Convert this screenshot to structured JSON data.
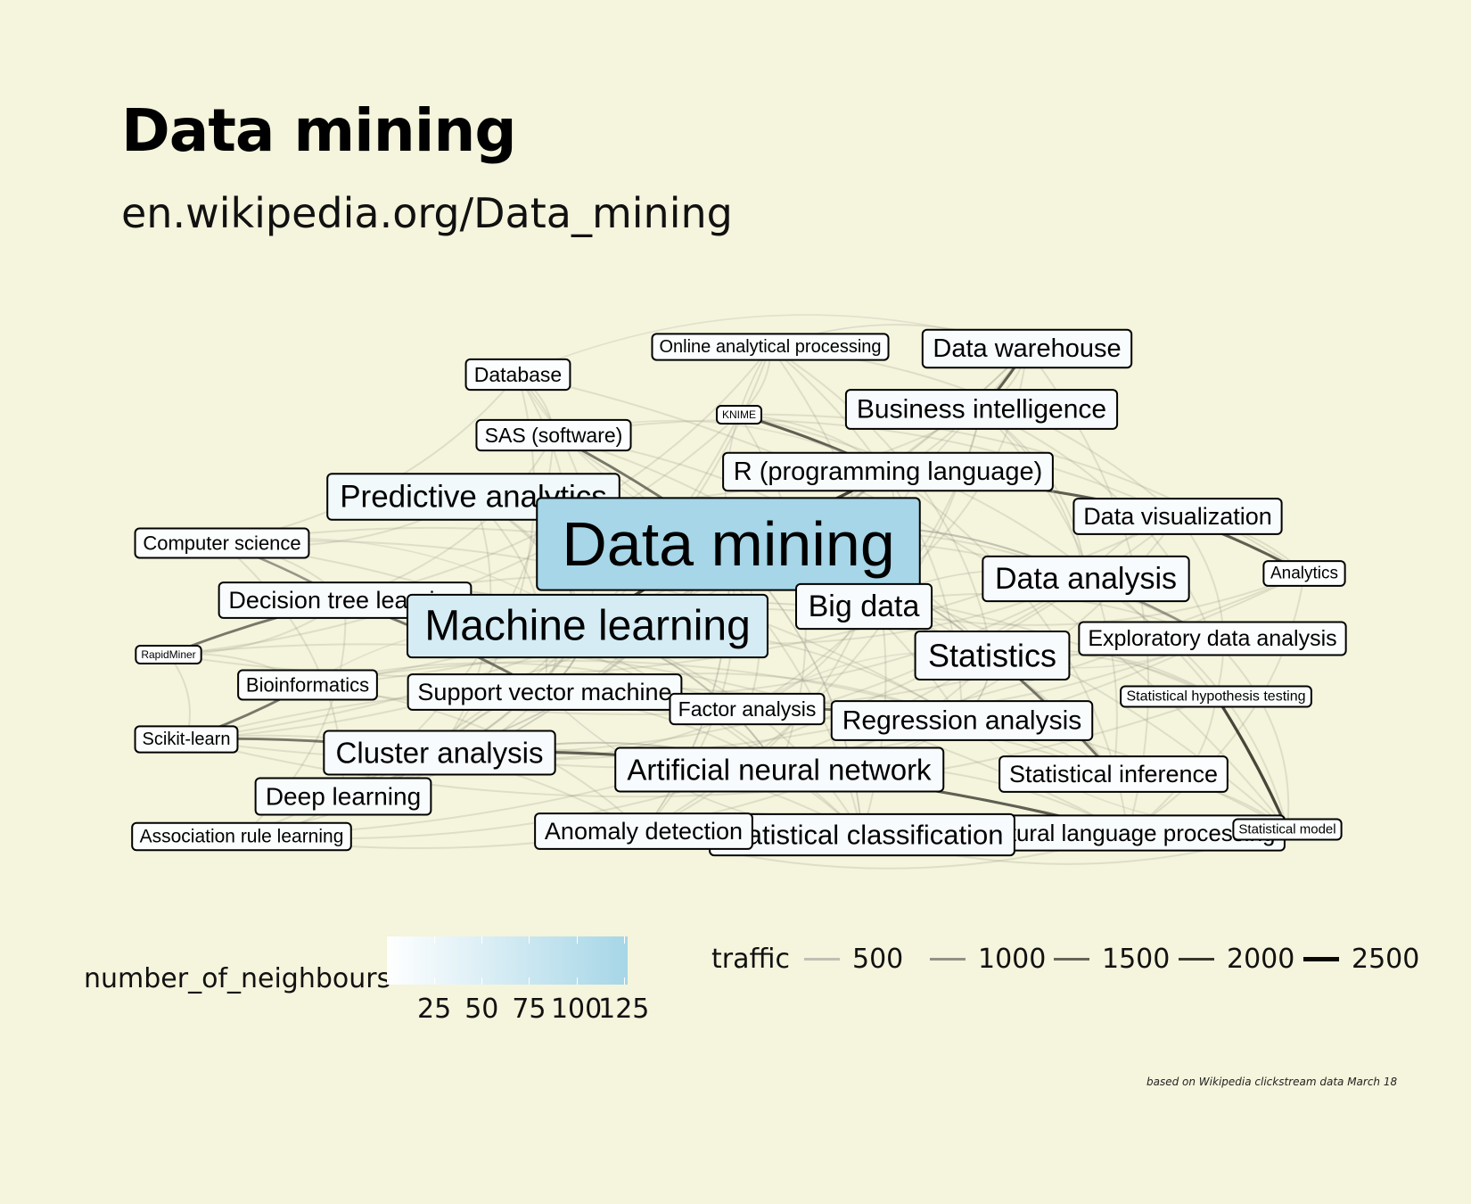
{
  "title": "Data mining",
  "subtitle": "en.wikipedia.org/Data_mining",
  "caption": "based on Wikipedia clickstream data March 18",
  "colors": {
    "background": "#f5f4dc",
    "gradient_low": "#ffffff",
    "gradient_high": "#a6d6e7"
  },
  "legend_neighbours": {
    "title": "number_of_neighbours",
    "ticks": [
      {
        "value": 25,
        "label": "25"
      },
      {
        "value": 50,
        "label": "50"
      },
      {
        "value": 75,
        "label": "75"
      },
      {
        "value": 100,
        "label": "100"
      },
      {
        "value": 125,
        "label": "125"
      }
    ],
    "range": [
      0,
      127
    ]
  },
  "legend_traffic": {
    "title": "traffic",
    "items": [
      {
        "value": 500,
        "label": "500"
      },
      {
        "value": 1000,
        "label": "1000"
      },
      {
        "value": 1500,
        "label": "1500"
      },
      {
        "value": 2000,
        "label": "2000"
      },
      {
        "value": 2500,
        "label": "2500"
      }
    ]
  },
  "nodes": [
    {
      "id": "online_analytical_processing",
      "label": "Online analytical processing",
      "neighbours": 5
    },
    {
      "id": "data_warehouse",
      "label": "Data warehouse",
      "neighbours": 10
    },
    {
      "id": "database",
      "label": "Database",
      "neighbours": 6
    },
    {
      "id": "knime",
      "label": "KNIME",
      "neighbours": 2
    },
    {
      "id": "business_intelligence",
      "label": "Business intelligence",
      "neighbours": 12
    },
    {
      "id": "sas_software",
      "label": "SAS (software)",
      "neighbours": 6
    },
    {
      "id": "r_programming_language",
      "label": "R (programming language)",
      "neighbours": 10
    },
    {
      "id": "predictive_analytics",
      "label": "Predictive analytics",
      "neighbours": 20
    },
    {
      "id": "data_visualization",
      "label": "Data visualization",
      "neighbours": 8
    },
    {
      "id": "data_mining",
      "label": "Data mining",
      "neighbours": 127
    },
    {
      "id": "computer_science",
      "label": "Computer science",
      "neighbours": 4
    },
    {
      "id": "analytics",
      "label": "Analytics",
      "neighbours": 3
    },
    {
      "id": "data_analysis",
      "label": "Data analysis",
      "neighbours": 12
    },
    {
      "id": "decision_tree_learning",
      "label": "Decision tree learning",
      "neighbours": 10
    },
    {
      "id": "big_data",
      "label": "Big data",
      "neighbours": 12
    },
    {
      "id": "machine_learning",
      "label": "Machine learning",
      "neighbours": 60
    },
    {
      "id": "rapidminer",
      "label": "RapidMiner",
      "neighbours": 2
    },
    {
      "id": "exploratory_data_analysis",
      "label": "Exploratory data analysis",
      "neighbours": 6
    },
    {
      "id": "statistics",
      "label": "Statistics",
      "neighbours": 12
    },
    {
      "id": "bioinformatics",
      "label": "Bioinformatics",
      "neighbours": 4
    },
    {
      "id": "support_vector_machine",
      "label": "Support vector machine",
      "neighbours": 10
    },
    {
      "id": "statistical_hypothesis_testing",
      "label": "Statistical hypothesis testing",
      "neighbours": 4
    },
    {
      "id": "factor_analysis",
      "label": "Factor analysis",
      "neighbours": 5
    },
    {
      "id": "regression_analysis",
      "label": "Regression analysis",
      "neighbours": 10
    },
    {
      "id": "scikit_learn",
      "label": "Scikit-learn",
      "neighbours": 4
    },
    {
      "id": "cluster_analysis",
      "label": "Cluster analysis",
      "neighbours": 12
    },
    {
      "id": "artificial_neural_network",
      "label": "Artificial neural network",
      "neighbours": 12
    },
    {
      "id": "statistical_inference",
      "label": "Statistical inference",
      "neighbours": 6
    },
    {
      "id": "deep_learning",
      "label": "Deep learning",
      "neighbours": 8
    },
    {
      "id": "natural_language_processing",
      "label": "Natural language processing",
      "neighbours": 8
    },
    {
      "id": "statistical_model",
      "label": "Statistical model",
      "neighbours": 3
    },
    {
      "id": "association_rule_learning",
      "label": "Association rule learning",
      "neighbours": 4
    },
    {
      "id": "anomaly_detection",
      "label": "Anomaly detection",
      "neighbours": 8
    },
    {
      "id": "statistical_classification",
      "label": "Statistical classification",
      "neighbours": 12
    }
  ],
  "edges": [
    {
      "from": "data_warehouse",
      "to": "business_intelligence",
      "traffic": 2000
    },
    {
      "from": "knime",
      "to": "r_programming_language",
      "traffic": 2000
    },
    {
      "from": "sas_software",
      "to": "data_mining",
      "traffic": 1800
    },
    {
      "from": "predictive_analytics",
      "to": "data_mining",
      "traffic": 2500
    },
    {
      "from": "computer_science",
      "to": "decision_tree_learning",
      "traffic": 1500
    },
    {
      "from": "decision_tree_learning",
      "to": "support_vector_machine",
      "traffic": 1800
    },
    {
      "from": "rapidminer",
      "to": "decision_tree_learning",
      "traffic": 1800
    },
    {
      "from": "bioinformatics",
      "to": "scikit_learn",
      "traffic": 1800
    },
    {
      "from": "scikit_learn",
      "to": "cluster_analysis",
      "traffic": 1800
    },
    {
      "from": "r_programming_language",
      "to": "data_visualization",
      "traffic": 2000
    },
    {
      "from": "data_visualization",
      "to": "analytics",
      "traffic": 2000
    },
    {
      "from": "data_analysis",
      "to": "exploratory_data_analysis",
      "traffic": 1500
    },
    {
      "from": "statistics",
      "to": "statistical_inference",
      "traffic": 1800
    },
    {
      "from": "statistical_hypothesis_testing",
      "to": "statistical_model",
      "traffic": 2200
    },
    {
      "from": "artificial_neural_network",
      "to": "natural_language_processing",
      "traffic": 2000
    },
    {
      "from": "cluster_analysis",
      "to": "artificial_neural_network",
      "traffic": 2000
    },
    {
      "from": "machine_learning",
      "to": "data_mining",
      "traffic": 2200
    },
    {
      "from": "r_programming_language",
      "to": "data_mining",
      "traffic": 2200
    },
    {
      "from": "factor_analysis",
      "to": "regression_analysis",
      "traffic": 1800
    },
    {
      "from": "data_mining",
      "to": "big_data",
      "traffic": 1000
    },
    {
      "from": "data_mining",
      "to": "statistics",
      "traffic": 1000
    },
    {
      "from": "data_mining",
      "to": "data_analysis",
      "traffic": 1000
    },
    {
      "from": "data_mining",
      "to": "cluster_analysis",
      "traffic": 800
    },
    {
      "from": "data_mining",
      "to": "anomaly_detection",
      "traffic": 800
    },
    {
      "from": "data_mining",
      "to": "statistical_classification",
      "traffic": 800
    },
    {
      "from": "data_mining",
      "to": "online_analytical_processing",
      "traffic": 600
    },
    {
      "from": "data_mining",
      "to": "database",
      "traffic": 500
    },
    {
      "from": "data_mining",
      "to": "deep_learning",
      "traffic": 600
    },
    {
      "from": "data_mining",
      "to": "association_rule_learning",
      "traffic": 600
    },
    {
      "from": "machine_learning",
      "to": "artificial_neural_network",
      "traffic": 1000
    },
    {
      "from": "machine_learning",
      "to": "support_vector_machine",
      "traffic": 1000
    },
    {
      "from": "machine_learning",
      "to": "deep_learning",
      "traffic": 800
    },
    {
      "from": "machine_learning",
      "to": "statistics",
      "traffic": 700
    },
    {
      "from": "big_data",
      "to": "data_analysis",
      "traffic": 600
    },
    {
      "from": "big_data",
      "to": "business_intelligence",
      "traffic": 600
    },
    {
      "from": "statistics",
      "to": "regression_analysis",
      "traffic": 800
    },
    {
      "from": "statistics",
      "to": "statistical_hypothesis_testing",
      "traffic": 600
    },
    {
      "from": "data_analysis",
      "to": "data_visualization",
      "traffic": 600
    },
    {
      "from": "online_analytical_processing",
      "to": "data_warehouse",
      "traffic": 600
    },
    {
      "from": "business_intelligence",
      "to": "data_analysis",
      "traffic": 600
    },
    {
      "from": "anomaly_detection",
      "to": "statistical_classification",
      "traffic": 700
    },
    {
      "from": "regression_analysis",
      "to": "statistical_inference",
      "traffic": 600
    },
    {
      "from": "predictive_analytics",
      "to": "machine_learning",
      "traffic": 700
    },
    {
      "from": "cluster_analysis",
      "to": "support_vector_machine",
      "traffic": 700
    },
    {
      "from": "deep_learning",
      "to": "artificial_neural_network",
      "traffic": 900
    },
    {
      "from": "decision_tree_learning",
      "to": "machine_learning",
      "traffic": 700
    },
    {
      "from": "statistical_classification",
      "to": "support_vector_machine",
      "traffic": 600
    },
    {
      "from": "exploratory_data_analysis",
      "to": "statistics",
      "traffic": 500
    },
    {
      "from": "factor_analysis",
      "to": "statistics",
      "traffic": 500
    },
    {
      "from": "computer_science",
      "to": "machine_learning",
      "traffic": 500
    },
    {
      "from": "bioinformatics",
      "to": "machine_learning",
      "traffic": 500
    },
    {
      "from": "sas_software",
      "to": "r_programming_language",
      "traffic": 500
    },
    {
      "from": "database",
      "to": "data_warehouse",
      "traffic": 500
    },
    {
      "from": "statistical_model",
      "to": "regression_analysis",
      "traffic": 500
    }
  ]
}
